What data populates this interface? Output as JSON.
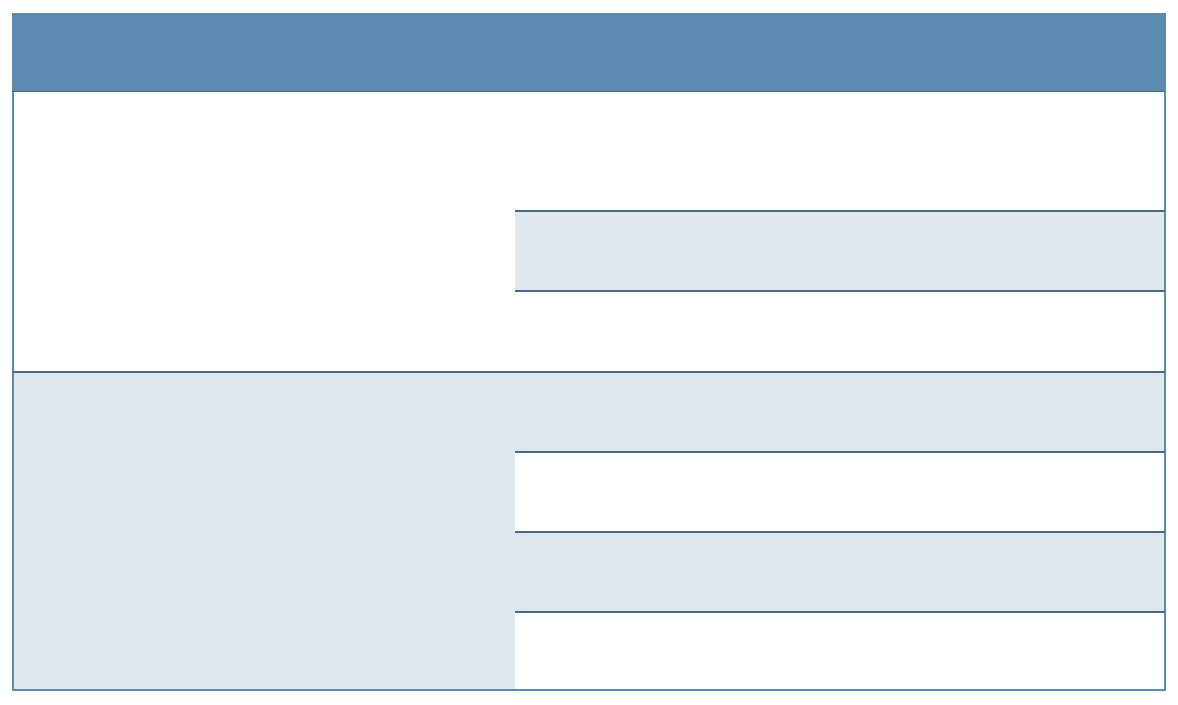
{
  "table": {
    "header": "",
    "groups": [
      {
        "label": "",
        "rows": [
          "",
          "",
          ""
        ]
      },
      {
        "label": "",
        "rows": [
          "",
          "",
          "",
          ""
        ]
      }
    ]
  },
  "colors": {
    "header_fill": "#5d8ab1",
    "border": "#46698a",
    "alt_row_fill": "#dfe7ef",
    "row_fill": "#ffffff"
  }
}
